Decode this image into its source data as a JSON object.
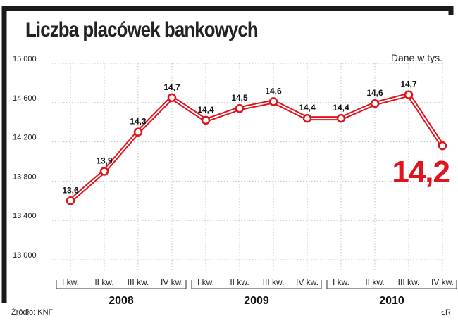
{
  "page": {
    "title": "Liczba placówek bankowych",
    "unit_note": "Dane w tys.",
    "source": "Źródło: KNF",
    "author": "ŁR"
  },
  "colors": {
    "line": "#e0141e",
    "grid": "#bdbdbd",
    "frame": "#1a1a1a"
  },
  "chart_data": {
    "type": "line",
    "title": "Liczba placówek bankowych",
    "ylabel": "",
    "xlabel": "",
    "ylim": [
      13000,
      15000
    ],
    "yticks": [
      "15 000",
      "14 600",
      "14 200",
      "13 800",
      "13 400",
      "13 000"
    ],
    "ytick_values": [
      15000,
      14600,
      14200,
      13800,
      13400,
      13000
    ],
    "grid": true,
    "categories": [
      "I kw.",
      "II kw.",
      "III kw.",
      "IV kw.",
      "I kw.",
      "II kw.",
      "III kw.",
      "IV kw.",
      "I kw.",
      "II kw.",
      "III kw.",
      "IV kw."
    ],
    "groups": [
      {
        "label": "2008",
        "count": 4
      },
      {
        "label": "2009",
        "count": 4
      },
      {
        "label": "2010",
        "count": 4
      }
    ],
    "series": [
      {
        "values": [
          13600,
          13900,
          14300,
          14650,
          14420,
          14540,
          14610,
          14440,
          14440,
          14590,
          14680,
          14160
        ],
        "labels": [
          "13,6",
          "13,9",
          "14,3",
          "14,7",
          "14,4",
          "14,5",
          "14,6",
          "14,4",
          "14,4",
          "14,6",
          "14,7",
          "14,2"
        ]
      }
    ]
  }
}
